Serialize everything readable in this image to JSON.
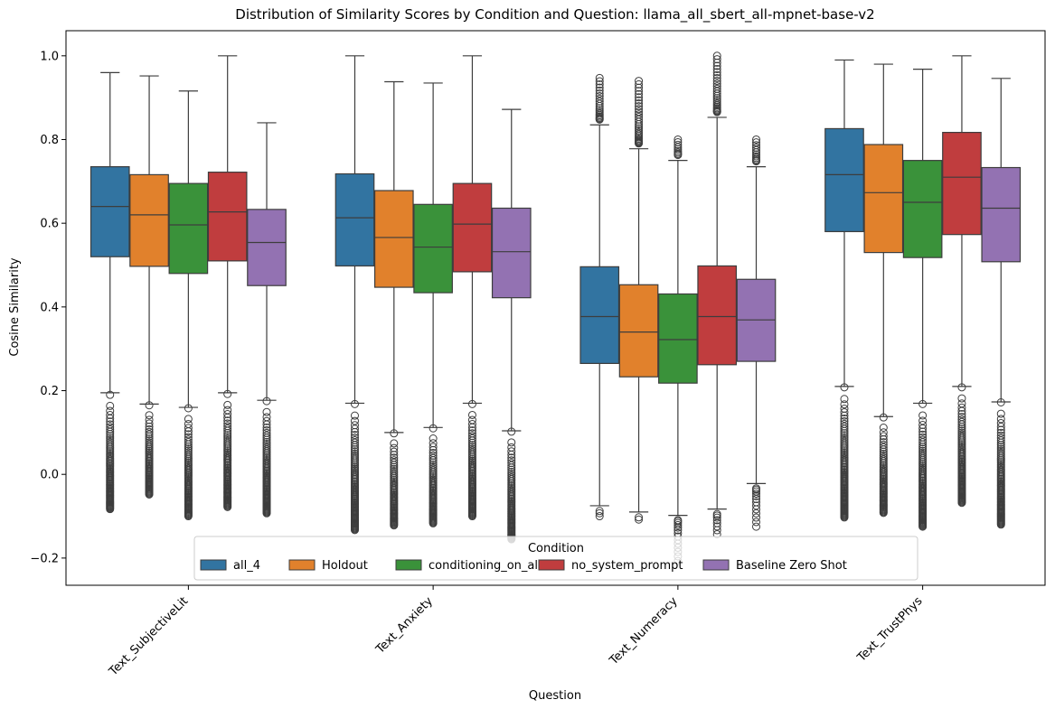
{
  "chart_data": {
    "type": "box",
    "title": "Distribution of Similarity Scores by Condition and Question: llama_all_sbert_all-mpnet-base-v2",
    "xlabel": "Question",
    "ylabel": "Cosine Similarity",
    "ylim": [
      -0.265,
      1.06
    ],
    "yticks": [
      -0.2,
      0.0,
      0.2,
      0.4,
      0.6,
      0.8,
      1.0
    ],
    "ytick_labels": [
      "−0.2",
      "0.0",
      "0.2",
      "0.4",
      "0.6",
      "0.8",
      "1.0"
    ],
    "categories": [
      "Text_SubjectiveLit",
      "Text_Anxiety",
      "Text_Numeracy",
      "Text_TrustPhys"
    ],
    "grid": false,
    "legend": {
      "title": "Condition",
      "placement": "lower center",
      "entries": [
        "all_4",
        "Holdout",
        "conditioning_on_all",
        "no_system_prompt",
        "Baseline Zero Shot"
      ]
    },
    "series": [
      {
        "name": "all_4",
        "color": "#3274a1",
        "boxes": [
          {
            "q1": 0.52,
            "median": 0.64,
            "q3": 0.735,
            "whisker_low": 0.195,
            "whisker_high": 0.96,
            "outlier_min": -0.083,
            "outlier_max": 0.19
          },
          {
            "q1": 0.498,
            "median": 0.613,
            "q3": 0.718,
            "whisker_low": 0.17,
            "whisker_high": 1.0,
            "outlier_min": -0.133,
            "outlier_max": 0.168
          },
          {
            "q1": 0.265,
            "median": 0.377,
            "q3": 0.496,
            "whisker_low": -0.075,
            "whisker_high": 0.835,
            "outlier_min": -0.1,
            "outlier_max": 0.947
          },
          {
            "q1": 0.58,
            "median": 0.716,
            "q3": 0.826,
            "whisker_low": 0.21,
            "whisker_high": 0.99,
            "outlier_min": -0.103,
            "outlier_max": 0.208
          }
        ]
      },
      {
        "name": "Holdout",
        "color": "#e1812c",
        "boxes": [
          {
            "q1": 0.497,
            "median": 0.62,
            "q3": 0.716,
            "whisker_low": 0.168,
            "whisker_high": 0.952,
            "outlier_min": -0.048,
            "outlier_max": 0.165
          },
          {
            "q1": 0.447,
            "median": 0.566,
            "q3": 0.678,
            "whisker_low": 0.1,
            "whisker_high": 0.938,
            "outlier_min": -0.122,
            "outlier_max": 0.098
          },
          {
            "q1": 0.233,
            "median": 0.34,
            "q3": 0.453,
            "whisker_low": -0.09,
            "whisker_high": 0.778,
            "outlier_min": -0.108,
            "outlier_max": 0.94
          },
          {
            "q1": 0.53,
            "median": 0.673,
            "q3": 0.788,
            "whisker_low": 0.138,
            "whisker_high": 0.98,
            "outlier_min": -0.092,
            "outlier_max": 0.136
          }
        ]
      },
      {
        "name": "conditioning_on_all",
        "color": "#3a923a",
        "boxes": [
          {
            "q1": 0.48,
            "median": 0.596,
            "q3": 0.695,
            "whisker_low": 0.16,
            "whisker_high": 0.916,
            "outlier_min": -0.1,
            "outlier_max": 0.158
          },
          {
            "q1": 0.434,
            "median": 0.543,
            "q3": 0.645,
            "whisker_low": 0.112,
            "whisker_high": 0.935,
            "outlier_min": -0.117,
            "outlier_max": 0.11
          },
          {
            "q1": 0.218,
            "median": 0.322,
            "q3": 0.431,
            "whisker_low": -0.098,
            "whisker_high": 0.75,
            "outlier_min": -0.207,
            "outlier_max": 0.8
          },
          {
            "q1": 0.518,
            "median": 0.65,
            "q3": 0.75,
            "whisker_low": 0.17,
            "whisker_high": 0.968,
            "outlier_min": -0.125,
            "outlier_max": 0.168
          }
        ]
      },
      {
        "name": "no_system_prompt",
        "color": "#c03d3e",
        "boxes": [
          {
            "q1": 0.51,
            "median": 0.627,
            "q3": 0.722,
            "whisker_low": 0.195,
            "whisker_high": 1.0,
            "outlier_min": -0.078,
            "outlier_max": 0.192
          },
          {
            "q1": 0.484,
            "median": 0.598,
            "q3": 0.695,
            "whisker_low": 0.17,
            "whisker_high": 1.0,
            "outlier_min": -0.1,
            "outlier_max": 0.168
          },
          {
            "q1": 0.262,
            "median": 0.377,
            "q3": 0.498,
            "whisker_low": -0.083,
            "whisker_high": 0.853,
            "outlier_min": -0.143,
            "outlier_max": 1.0
          },
          {
            "q1": 0.573,
            "median": 0.71,
            "q3": 0.817,
            "whisker_low": 0.21,
            "whisker_high": 1.0,
            "outlier_min": -0.068,
            "outlier_max": 0.208
          }
        ]
      },
      {
        "name": "Baseline Zero Shot",
        "color": "#9372b2",
        "boxes": [
          {
            "q1": 0.451,
            "median": 0.554,
            "q3": 0.633,
            "whisker_low": 0.177,
            "whisker_high": 0.84,
            "outlier_min": -0.093,
            "outlier_max": 0.175
          },
          {
            "q1": 0.422,
            "median": 0.532,
            "q3": 0.636,
            "whisker_low": 0.104,
            "whisker_high": 0.872,
            "outlier_min": -0.155,
            "outlier_max": 0.102
          },
          {
            "q1": 0.27,
            "median": 0.369,
            "q3": 0.466,
            "whisker_low": -0.022,
            "whisker_high": 0.735,
            "outlier_min": -0.125,
            "outlier_max": 0.8
          },
          {
            "q1": 0.508,
            "median": 0.636,
            "q3": 0.733,
            "whisker_low": 0.173,
            "whisker_high": 0.946,
            "outlier_min": -0.12,
            "outlier_max": 0.172
          }
        ]
      }
    ]
  }
}
